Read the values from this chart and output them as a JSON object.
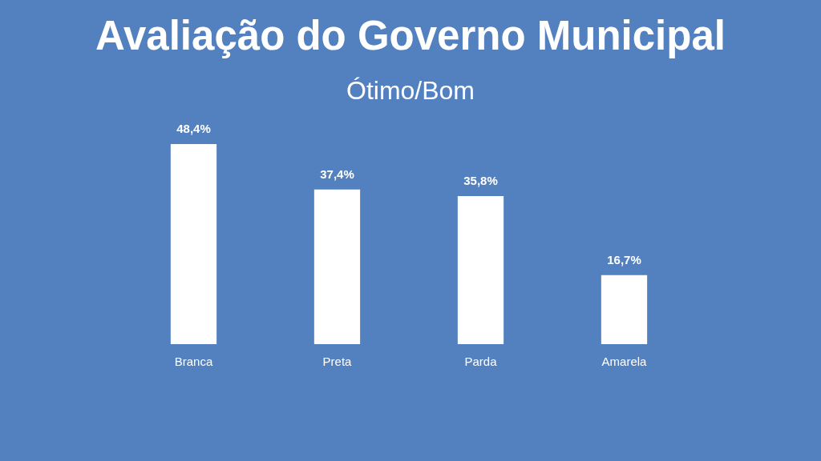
{
  "chart_data": {
    "type": "bar",
    "title": "Avaliação do Governo Municipal",
    "subtitle": "Ótimo/Bom",
    "categories": [
      "Branca",
      "Preta",
      "Parda",
      "Amarela"
    ],
    "values": [
      48.4,
      37.4,
      35.8,
      16.7
    ],
    "color": "#ffffff",
    "value_labels": [
      "48,4%",
      "37,4%",
      "35,8%",
      "16,7%"
    ]
  }
}
